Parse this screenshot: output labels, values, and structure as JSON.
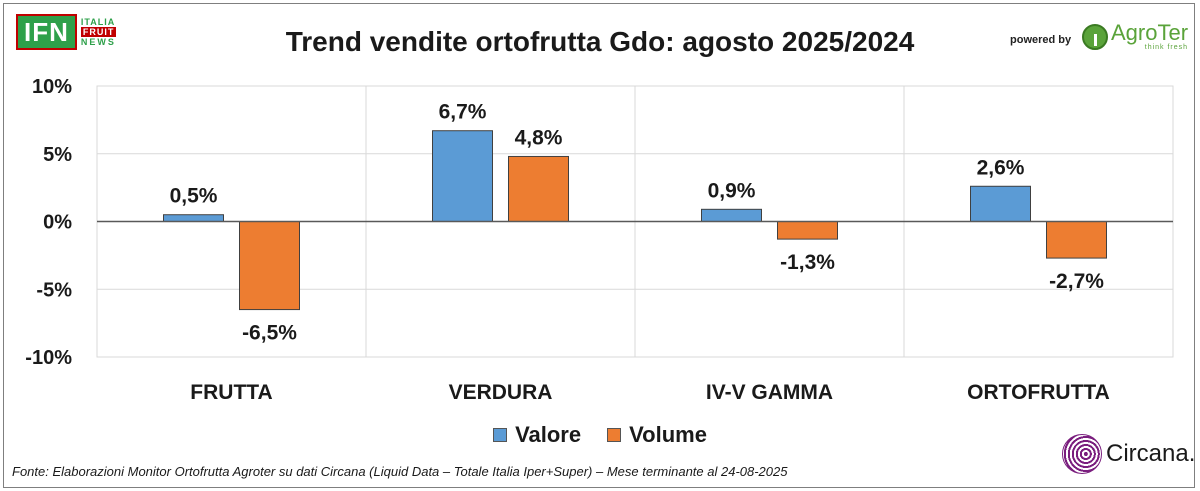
{
  "header": {
    "logo_main": "IFN",
    "logo_sub": [
      "ITALIA",
      "FRUIT",
      "NEWS"
    ],
    "title": "Trend vendite ortofrutta Gdo: agosto 2025/2024",
    "powered_by": "powered by",
    "partner_name": "AgroTer",
    "partner_tagline": "think fresh"
  },
  "chart_data": {
    "type": "bar",
    "title": "Trend vendite ortofrutta Gdo: agosto 2025/2024",
    "xlabel": "",
    "ylabel": "",
    "categories": [
      "FRUTTA",
      "VERDURA",
      "IV-V GAMMA",
      "ORTOFRUTTA"
    ],
    "series": [
      {
        "name": "Valore",
        "values": [
          0.5,
          6.7,
          0.9,
          2.6
        ],
        "labels": [
          "0,5%",
          "6,7%",
          "0,9%",
          "2,6%"
        ],
        "color": "#5b9bd5"
      },
      {
        "name": "Volume",
        "values": [
          -6.5,
          4.8,
          -1.3,
          -2.7
        ],
        "labels": [
          "-6,5%",
          "4,8%",
          "-1,3%",
          "-2,7%"
        ],
        "color": "#ed7d31"
      }
    ],
    "ylim": [
      -10,
      10
    ],
    "yticks": [
      10,
      5,
      0,
      -5,
      -10
    ],
    "ytick_labels": [
      "10%",
      "5%",
      "0%",
      "-5%",
      "-10%"
    ],
    "grid": true,
    "legend_position": "bottom"
  },
  "legend": [
    {
      "label": "Valore",
      "color": "#5b9bd5"
    },
    {
      "label": "Volume",
      "color": "#ed7d31"
    }
  ],
  "footer": {
    "source": "Fonte: Elaborazioni Monitor Ortofrutta Agroter su dati Circana (Liquid Data – Totale Italia Iper+Super) – Mese terminante al 24-08-2025",
    "brand": "Circana."
  }
}
